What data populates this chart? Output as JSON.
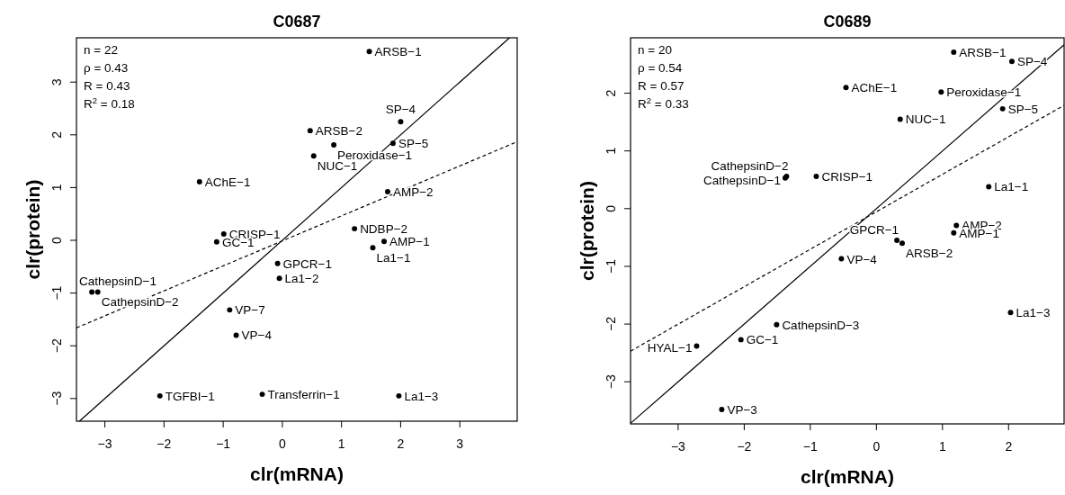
{
  "chart_data": [
    {
      "type": "scatter",
      "title": "C0687",
      "xlabel": "clr(mRNA)",
      "ylabel": "clr(protein)",
      "xlim": [
        -3.48,
        3.97
      ],
      "ylim": [
        -3.43,
        3.84
      ],
      "xticks": [
        -3,
        -2,
        -1,
        0,
        1,
        2,
        3
      ],
      "yticks": [
        -3,
        -2,
        -1,
        0,
        1,
        2,
        3
      ],
      "annotations": [
        "n = 22",
        "ρ = 0.43",
        "R = 0.43",
        "R$^{2}$ = 0.18",
        {
          "text": "ARSB−1",
          "x": 1.47,
          "y": 3.58
        },
        {
          "text": "SP−4",
          "x": 2.0,
          "y": 2.25
        },
        {
          "text": "ARSB−2",
          "x": 0.47,
          "y": 2.08
        },
        {
          "text": "Peroxidase−1",
          "x": 0.87,
          "y": 1.81
        },
        {
          "text": "SP−5",
          "x": 1.87,
          "y": 1.84
        },
        {
          "text": "NUC−1",
          "x": 0.53,
          "y": 1.6
        },
        {
          "text": "AChE−1",
          "x": -1.4,
          "y": 1.11
        },
        {
          "text": "AMP−2",
          "x": 1.78,
          "y": 0.92
        },
        {
          "text": "NDBP−2",
          "x": 1.22,
          "y": 0.22
        },
        {
          "text": "AMP−1",
          "x": 1.72,
          "y": -0.02
        },
        {
          "text": "La1−1",
          "x": 1.53,
          "y": -0.14
        },
        {
          "text": "CRISP−1",
          "x": -0.99,
          "y": 0.12
        },
        {
          "text": "GC−1",
          "x": -1.11,
          "y": -0.03
        },
        {
          "text": "GPCR−1",
          "x": -0.08,
          "y": -0.44
        },
        {
          "text": "La1−2",
          "x": -0.05,
          "y": -0.72
        },
        {
          "text": "CathepsinD−1",
          "x": -3.22,
          "y": -0.98
        },
        {
          "text": "CathepsinD−2",
          "x": -3.12,
          "y": -0.98
        },
        {
          "text": "VP−7",
          "x": -0.89,
          "y": -1.32
        },
        {
          "text": "VP−4",
          "x": -0.78,
          "y": -1.8
        },
        {
          "text": "TGFBI−1",
          "x": -2.07,
          "y": -2.95
        },
        {
          "text": "Transferrin−1",
          "x": -0.34,
          "y": -2.92
        },
        {
          "text": "La1−3",
          "x": 1.97,
          "y": -2.95
        }
      ],
      "series": [
        {
          "marker": "circle",
          "color": "#000000",
          "x": [
            1.47,
            2.0,
            0.47,
            0.87,
            1.87,
            0.53,
            -1.4,
            1.78,
            1.22,
            1.72,
            1.53,
            -0.99,
            -1.11,
            -0.08,
            -0.05,
            -3.22,
            -3.12,
            -0.89,
            -0.78,
            -2.07,
            -0.34,
            1.97
          ],
          "values": [
            3.58,
            2.25,
            2.08,
            1.81,
            1.84,
            1.6,
            1.11,
            0.92,
            0.22,
            -0.02,
            -0.14,
            0.12,
            -0.03,
            -0.44,
            -0.72,
            -0.98,
            -0.98,
            -1.32,
            -1.8,
            -2.95,
            -2.92,
            -2.95
          ]
        },
        {
          "type": "line",
          "color": "#000000",
          "line_style": "solid",
          "x": [
            -3.43,
            3.84
          ],
          "values": [
            -3.43,
            3.84
          ]
        },
        {
          "type": "line",
          "color": "#000000",
          "line_style": "dashed",
          "x": [
            -3.48,
            3.97
          ],
          "values": [
            -1.66,
            1.87
          ]
        }
      ]
    },
    {
      "type": "scatter",
      "title": "C0689",
      "xlabel": "clr(mRNA)",
      "ylabel": "clr(protein)",
      "xlim": [
        -3.72,
        2.84
      ],
      "ylim": [
        -3.73,
        2.96
      ],
      "xticks": [
        -3,
        -2,
        -1,
        0,
        1,
        2
      ],
      "yticks": [
        -3,
        -2,
        -1,
        0,
        1,
        2
      ],
      "annotations": [
        "n = 20",
        "ρ = 0.54",
        "R = 0.57",
        "R$^{2}$ = 0.33",
        {
          "text": "ARSB−1",
          "x": 1.17,
          "y": 2.71
        },
        {
          "text": "SP−4",
          "x": 2.05,
          "y": 2.55
        },
        {
          "text": "AChE−1",
          "x": -0.46,
          "y": 2.1
        },
        {
          "text": "Peroxidase−1",
          "x": 0.98,
          "y": 2.02
        },
        {
          "text": "SP−5",
          "x": 1.91,
          "y": 1.73
        },
        {
          "text": "NUC−1",
          "x": 0.36,
          "y": 1.55
        },
        {
          "text": "CRISP−1",
          "x": -0.91,
          "y": 0.56
        },
        {
          "text": "CathepsinD−2",
          "x": -1.36,
          "y": 0.56
        },
        {
          "text": "CathepsinD−1",
          "x": -1.38,
          "y": 0.53
        },
        {
          "text": "La1−1",
          "x": 1.7,
          "y": 0.38
        },
        {
          "text": "AMP−2",
          "x": 1.21,
          "y": -0.29
        },
        {
          "text": "AMP−1",
          "x": 1.17,
          "y": -0.42
        },
        {
          "text": "GPCR−1",
          "x": 0.31,
          "y": -0.55
        },
        {
          "text": "ARSB−2",
          "x": 0.39,
          "y": -0.6
        },
        {
          "text": "VP−4",
          "x": -0.53,
          "y": -0.87
        },
        {
          "text": "La1−3",
          "x": 2.03,
          "y": -1.8
        },
        {
          "text": "CathepsinD−3",
          "x": -1.51,
          "y": -2.01
        },
        {
          "text": "GC−1",
          "x": -2.05,
          "y": -2.27
        },
        {
          "text": "HYAL−1",
          "x": -2.72,
          "y": -2.38
        },
        {
          "text": "VP−3",
          "x": -2.34,
          "y": -3.48
        }
      ],
      "series": [
        {
          "marker": "circle",
          "color": "#000000",
          "x": [
            1.17,
            2.05,
            -0.46,
            0.98,
            1.91,
            0.36,
            -0.91,
            -1.36,
            -1.38,
            1.7,
            1.21,
            1.17,
            0.31,
            0.39,
            -0.53,
            2.03,
            -1.51,
            -2.05,
            -2.72,
            -2.34
          ],
          "values": [
            2.71,
            2.55,
            2.1,
            2.02,
            1.73,
            1.55,
            0.56,
            0.56,
            0.53,
            0.38,
            -0.29,
            -0.42,
            -0.55,
            -0.6,
            -0.87,
            -1.8,
            -2.01,
            -2.27,
            -2.38,
            -3.48
          ]
        },
        {
          "type": "line",
          "color": "#000000",
          "line_style": "solid",
          "x": [
            -3.72,
            2.84
          ],
          "values": [
            -3.72,
            2.84
          ]
        },
        {
          "type": "line",
          "color": "#000000",
          "line_style": "dashed",
          "x": [
            -3.72,
            2.84
          ],
          "values": [
            -2.47,
            1.79
          ]
        }
      ]
    }
  ]
}
